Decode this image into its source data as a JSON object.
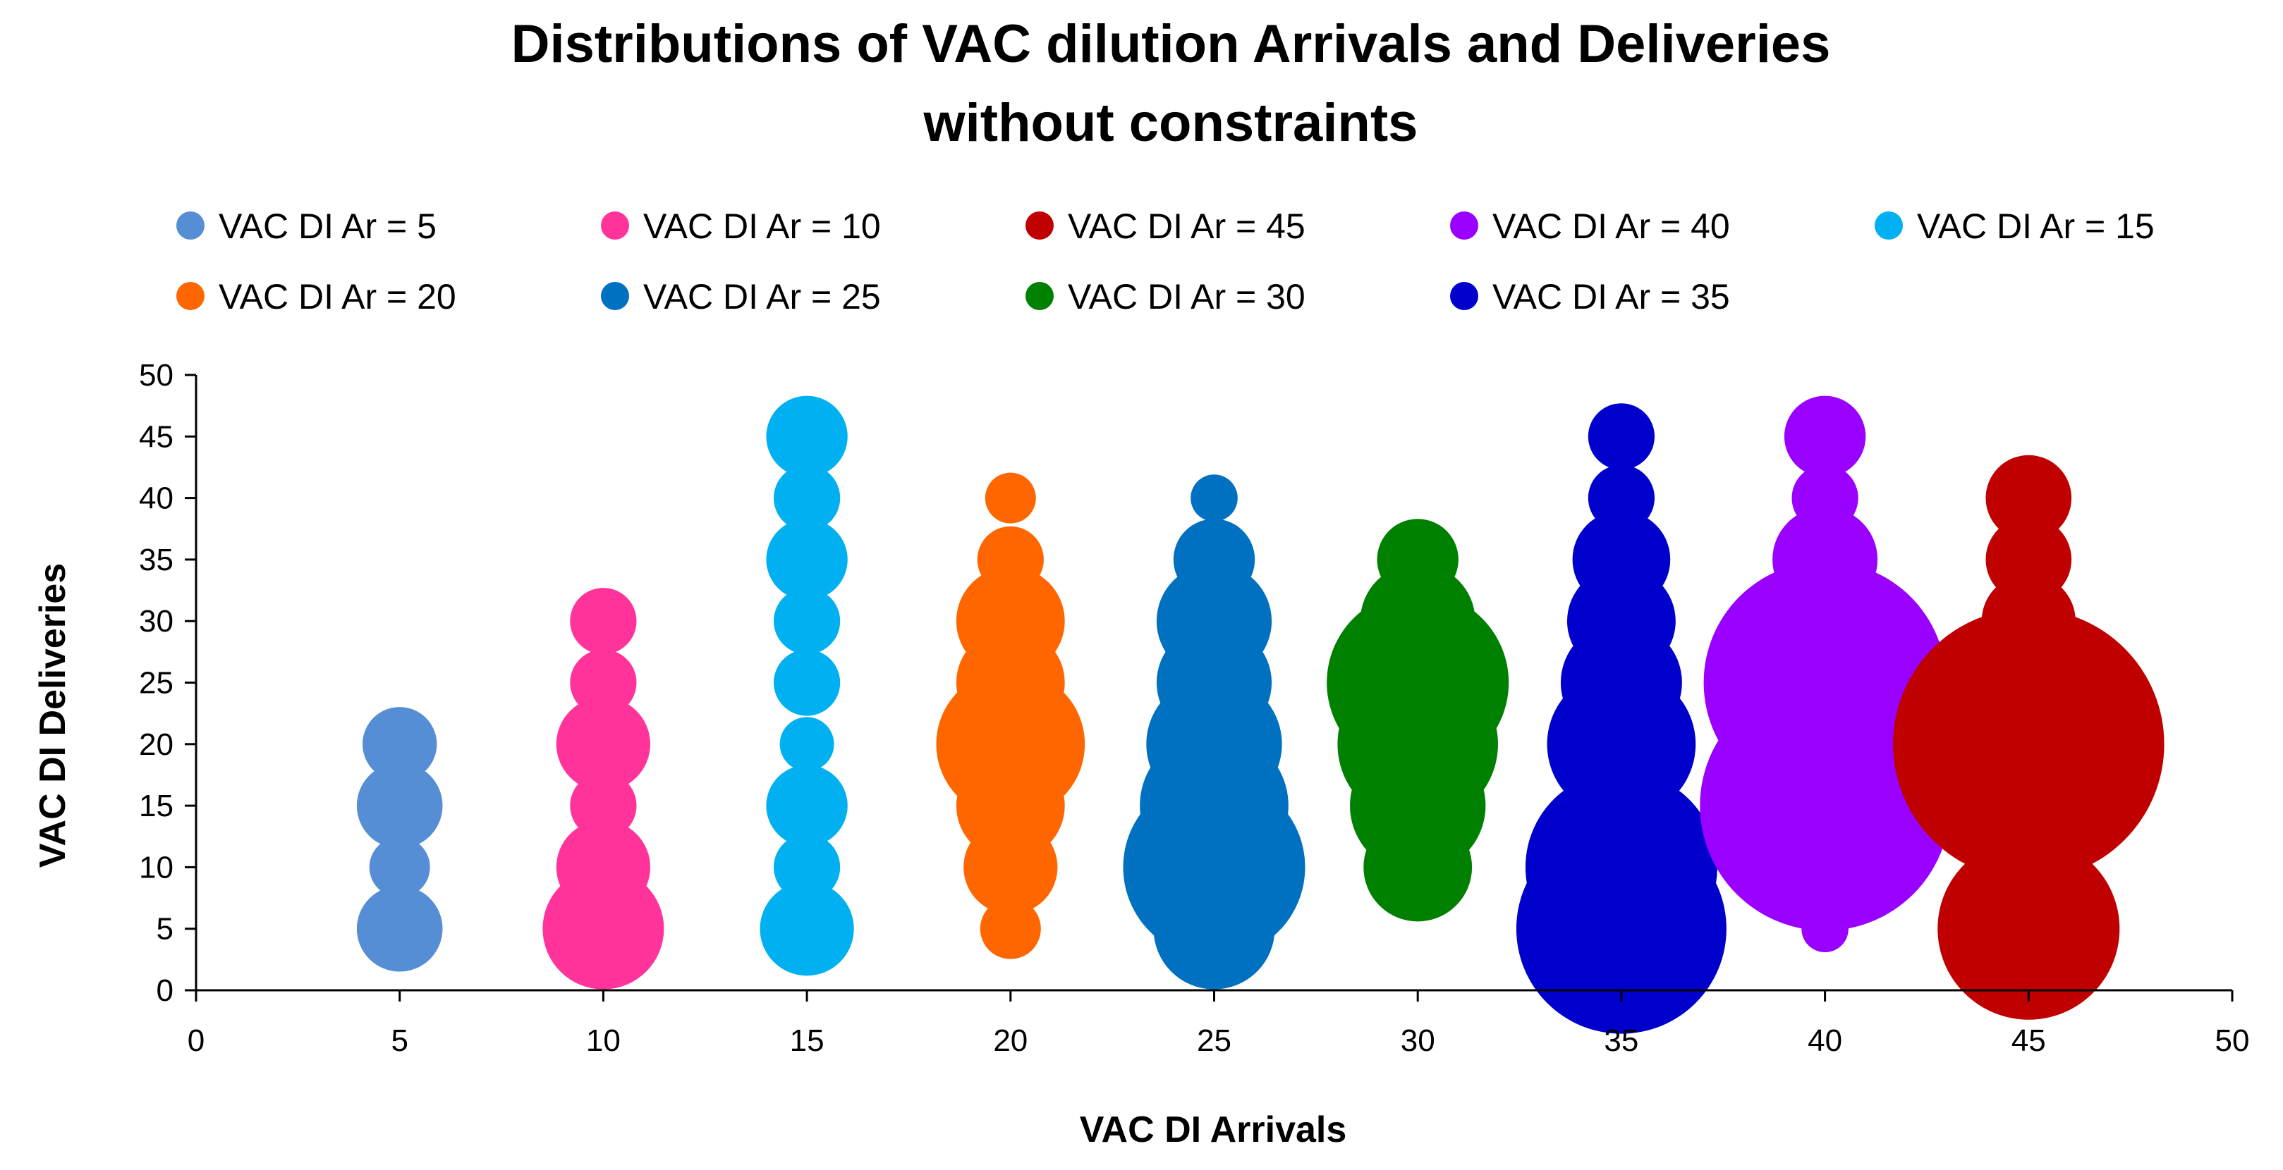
{
  "chart_data": {
    "type": "bubble",
    "title_lines": [
      "Distributions of VAC dilution Arrivals and Deliveries",
      "without constraints"
    ],
    "xlabel": "VAC DI Arrivals",
    "ylabel": "VAC DI Deliveries",
    "xlim": [
      0,
      50
    ],
    "ylim": [
      0,
      50
    ],
    "x_ticks": [
      0,
      5,
      10,
      15,
      20,
      25,
      30,
      35,
      40,
      45,
      50
    ],
    "y_ticks": [
      0,
      5,
      10,
      15,
      20,
      25,
      30,
      35,
      40,
      45,
      50
    ],
    "grid": false,
    "legend_position": "top",
    "series": [
      {
        "name": "VAC DI Ar = 5",
        "color": "#558ED5",
        "points": [
          {
            "x": 5,
            "y": 5,
            "size": 2
          },
          {
            "x": 5,
            "y": 10,
            "size": 1
          },
          {
            "x": 5,
            "y": 15,
            "size": 2
          },
          {
            "x": 5,
            "y": 20,
            "size": 1.5
          }
        ]
      },
      {
        "name": "VAC DI Ar = 10",
        "color": "#FF3399",
        "points": [
          {
            "x": 10,
            "y": 5,
            "size": 4
          },
          {
            "x": 10,
            "y": 10,
            "size": 2.4
          },
          {
            "x": 10,
            "y": 15,
            "size": 1.2
          },
          {
            "x": 10,
            "y": 20,
            "size": 2.4
          },
          {
            "x": 10,
            "y": 25,
            "size": 1.2
          },
          {
            "x": 10,
            "y": 30,
            "size": 1.2
          }
        ]
      },
      {
        "name": "VAC DI Ar = 45",
        "color": "#C00000",
        "points": [
          {
            "x": 45,
            "y": 5,
            "size": 9
          },
          {
            "x": 45,
            "y": 10,
            "size": 4
          },
          {
            "x": 45,
            "y": 20,
            "size": 20
          },
          {
            "x": 45,
            "y": 30,
            "size": 2.4
          },
          {
            "x": 45,
            "y": 35,
            "size": 2
          },
          {
            "x": 45,
            "y": 40,
            "size": 2
          }
        ]
      },
      {
        "name": "VAC DI Ar = 40",
        "color": "#9900FF",
        "points": [
          {
            "x": 40,
            "y": 5,
            "size": 0.6
          },
          {
            "x": 40,
            "y": 15,
            "size": 17
          },
          {
            "x": 40,
            "y": 25,
            "size": 16
          },
          {
            "x": 40,
            "y": 35,
            "size": 3
          },
          {
            "x": 40,
            "y": 40,
            "size": 1.2
          },
          {
            "x": 40,
            "y": 45,
            "size": 1.8
          }
        ]
      },
      {
        "name": "VAC DI Ar = 15",
        "color": "#00B0F0",
        "points": [
          {
            "x": 15,
            "y": 5,
            "size": 2.4
          },
          {
            "x": 15,
            "y": 10,
            "size": 1.2
          },
          {
            "x": 15,
            "y": 15,
            "size": 1.8
          },
          {
            "x": 15,
            "y": 20,
            "size": 0.8
          },
          {
            "x": 15,
            "y": 25,
            "size": 1.2
          },
          {
            "x": 15,
            "y": 30,
            "size": 1.2
          },
          {
            "x": 15,
            "y": 35,
            "size": 1.8
          },
          {
            "x": 15,
            "y": 40,
            "size": 1.2
          },
          {
            "x": 15,
            "y": 45,
            "size": 1.8
          }
        ]
      },
      {
        "name": "VAC DI Ar = 20",
        "color": "#FF6600",
        "points": [
          {
            "x": 20,
            "y": 5,
            "size": 1
          },
          {
            "x": 20,
            "y": 10,
            "size": 2.4
          },
          {
            "x": 20,
            "y": 15,
            "size": 3.2
          },
          {
            "x": 20,
            "y": 20,
            "size": 6
          },
          {
            "x": 20,
            "y": 25,
            "size": 3.2
          },
          {
            "x": 20,
            "y": 30,
            "size": 3.2
          },
          {
            "x": 20,
            "y": 35,
            "size": 1.2
          },
          {
            "x": 20,
            "y": 40,
            "size": 0.7
          }
        ]
      },
      {
        "name": "VAC DI Ar = 25",
        "color": "#0070C0",
        "points": [
          {
            "x": 25,
            "y": 5,
            "size": 4
          },
          {
            "x": 25,
            "y": 10,
            "size": 9
          },
          {
            "x": 25,
            "y": 15,
            "size": 6
          },
          {
            "x": 25,
            "y": 20,
            "size": 5
          },
          {
            "x": 25,
            "y": 25,
            "size": 3.6
          },
          {
            "x": 25,
            "y": 30,
            "size": 3.6
          },
          {
            "x": 25,
            "y": 35,
            "size": 1.8
          },
          {
            "x": 25,
            "y": 40,
            "size": 0.6
          }
        ]
      },
      {
        "name": "VAC DI Ar = 30",
        "color": "#008000",
        "points": [
          {
            "x": 30,
            "y": 10,
            "size": 3.2
          },
          {
            "x": 30,
            "y": 15,
            "size": 5
          },
          {
            "x": 30,
            "y": 20,
            "size": 7
          },
          {
            "x": 30,
            "y": 25,
            "size": 9
          },
          {
            "x": 30,
            "y": 30,
            "size": 3.6
          },
          {
            "x": 30,
            "y": 35,
            "size": 1.8
          }
        ]
      },
      {
        "name": "VAC DI Ar = 35",
        "color": "#0000CC",
        "points": [
          {
            "x": 35,
            "y": 5,
            "size": 12
          },
          {
            "x": 35,
            "y": 10,
            "size": 10
          },
          {
            "x": 35,
            "y": 20,
            "size": 6
          },
          {
            "x": 35,
            "y": 25,
            "size": 4
          },
          {
            "x": 35,
            "y": 30,
            "size": 3.2
          },
          {
            "x": 35,
            "y": 35,
            "size": 2.6
          },
          {
            "x": 35,
            "y": 40,
            "size": 1.2
          },
          {
            "x": 35,
            "y": 45,
            "size": 1.2
          }
        ]
      }
    ],
    "bubble_draw_order": [
      "VAC DI Ar = 5",
      "VAC DI Ar = 10",
      "VAC DI Ar = 15",
      "VAC DI Ar = 20",
      "VAC DI Ar = 25",
      "VAC DI Ar = 30",
      "VAC DI Ar = 35",
      "VAC DI Ar = 40",
      "VAC DI Ar = 45"
    ]
  }
}
